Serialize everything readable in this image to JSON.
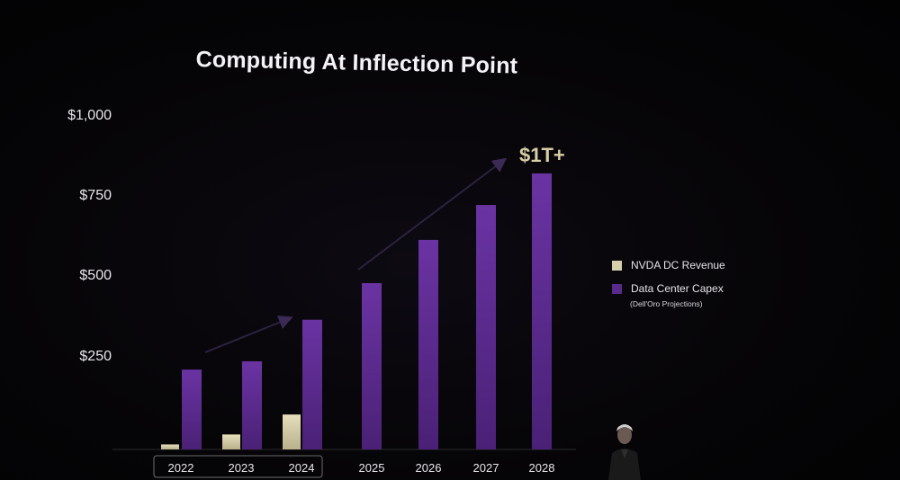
{
  "chart_data": {
    "type": "bar",
    "title": "Computing At Inflection Point",
    "categories": [
      "2022",
      "2023",
      "2024",
      "2025",
      "2026",
      "2027",
      "2028"
    ],
    "highlighted_categories": [
      "2022",
      "2023",
      "2024"
    ],
    "series": [
      {
        "name": "NVDA DC Revenue",
        "color": "#d6cfab",
        "values": [
          15,
          45,
          105,
          null,
          null,
          null,
          null
        ]
      },
      {
        "name": "Data Center Capex",
        "color": "#5a2a8c",
        "values": [
          240,
          265,
          390,
          500,
          630,
          735,
          830
        ]
      }
    ],
    "ylim": [
      0,
      1000
    ],
    "yticks": [
      "$1,000",
      "$750",
      "$500",
      "$250"
    ],
    "ytick_values": [
      1000,
      750,
      500,
      250
    ],
    "callout": "$1T+",
    "legend_note": "(Dell'Oro Projections)",
    "legend_position": "right"
  }
}
